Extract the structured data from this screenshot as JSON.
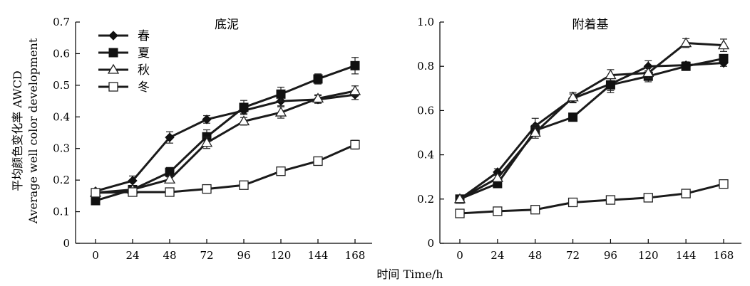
{
  "figure": {
    "ylabel_cn": "平均颜色变化率 AWCD",
    "ylabel_en": "Average well color development",
    "xlabel": "时间 Time/h"
  },
  "legend": [
    {
      "label": "春",
      "marker": "diamond"
    },
    {
      "label": "夏",
      "marker": "square-filled"
    },
    {
      "label": "秋",
      "marker": "triangle-open"
    },
    {
      "label": "冬",
      "marker": "square-open"
    }
  ],
  "colors": {
    "line": "#1a1a1a",
    "marker_fill": "#111111",
    "open_fill": "#ffffff"
  },
  "chart_data": [
    {
      "type": "line",
      "title": "底泥",
      "xlabel": "时间 Time/h",
      "ylabel": "平均颜色变化率 AWCD Average well color development",
      "x": [
        0,
        24,
        48,
        72,
        96,
        120,
        144,
        168
      ],
      "xticks": [
        "0",
        "24",
        "48",
        "72",
        "96",
        "120",
        "144",
        "168"
      ],
      "ylim": [
        0,
        0.7
      ],
      "yticks": [
        "0",
        "0.1",
        "0.2",
        "0.3",
        "0.4",
        "0.5",
        "0.6",
        "0.7"
      ],
      "series": [
        {
          "name": "春",
          "marker": "diamond",
          "values": [
            0.165,
            0.198,
            0.335,
            0.392,
            0.42,
            0.45,
            0.455,
            0.47
          ],
          "err": [
            0.006,
            0.015,
            0.018,
            0.012,
            0.01,
            0.015,
            0.012,
            0.015
          ]
        },
        {
          "name": "夏",
          "marker": "square-filled",
          "values": [
            0.135,
            0.17,
            0.225,
            0.337,
            0.43,
            0.472,
            0.52,
            0.562
          ],
          "err": [
            0.006,
            0.01,
            0.015,
            0.022,
            0.022,
            0.022,
            0.016,
            0.026
          ]
        },
        {
          "name": "秋",
          "marker": "triangle-open",
          "values": [
            0.16,
            0.17,
            0.202,
            0.318,
            0.386,
            0.414,
            0.458,
            0.482
          ],
          "err": [
            0.006,
            0.008,
            0.01,
            0.018,
            0.012,
            0.018,
            0.012,
            0.016
          ]
        },
        {
          "name": "冬",
          "marker": "square-open",
          "values": [
            0.16,
            0.162,
            0.162,
            0.172,
            0.184,
            0.228,
            0.26,
            0.312
          ],
          "err": [
            0.005,
            0.005,
            0.005,
            0.006,
            0.006,
            0.008,
            0.01,
            0.014
          ]
        }
      ]
    },
    {
      "type": "line",
      "title": "附着基",
      "xlabel": "时间 Time/h",
      "x": [
        0,
        24,
        48,
        72,
        96,
        120,
        144,
        168
      ],
      "xticks": [
        "0",
        "24",
        "48",
        "72",
        "96",
        "120",
        "144",
        "168"
      ],
      "ylim": [
        0,
        1.0
      ],
      "yticks": [
        "0",
        "0.2",
        "0.4",
        "0.6",
        "0.8",
        "1.0"
      ],
      "series": [
        {
          "name": "春",
          "marker": "diamond",
          "values": [
            0.2,
            0.322,
            0.53,
            0.655,
            0.72,
            0.8,
            0.805,
            0.815
          ],
          "err": [
            0.008,
            0.015,
            0.035,
            0.02,
            0.03,
            0.025,
            0.015,
            0.015
          ]
        },
        {
          "name": "夏",
          "marker": "square-filled",
          "values": [
            0.2,
            0.27,
            0.51,
            0.57,
            0.716,
            0.755,
            0.8,
            0.835
          ],
          "err": [
            0.008,
            0.012,
            0.025,
            0.012,
            0.035,
            0.025,
            0.012,
            0.018
          ]
        },
        {
          "name": "秋",
          "marker": "triangle-open",
          "values": [
            0.2,
            0.295,
            0.5,
            0.66,
            0.76,
            0.77,
            0.905,
            0.895
          ],
          "err": [
            0.008,
            0.015,
            0.025,
            0.022,
            0.025,
            0.025,
            0.02,
            0.028
          ]
        },
        {
          "name": "冬",
          "marker": "square-open",
          "values": [
            0.135,
            0.145,
            0.152,
            0.185,
            0.196,
            0.206,
            0.225,
            0.268
          ],
          "err": [
            0.006,
            0.006,
            0.008,
            0.01,
            0.01,
            0.01,
            0.01,
            0.018
          ]
        }
      ]
    }
  ]
}
